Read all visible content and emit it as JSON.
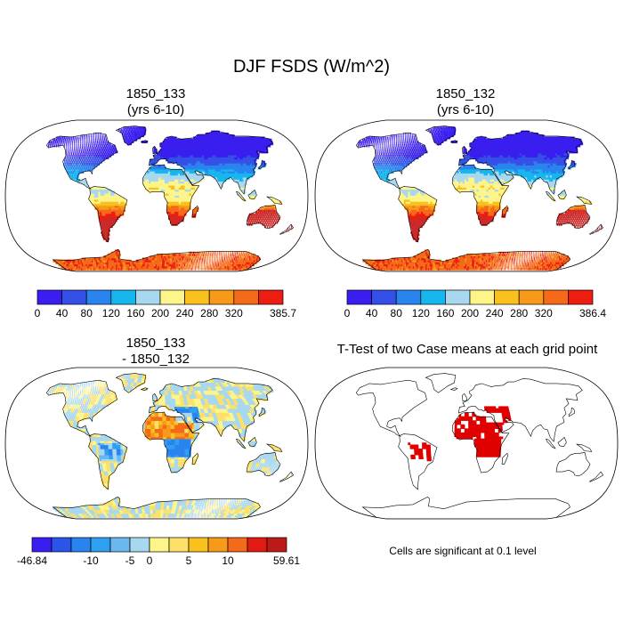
{
  "figure": {
    "title": "DJF FSDS (W/m^2)",
    "footnote": "Cells are significant at 0.1 level"
  },
  "colors": {
    "land_scale": [
      "#3a1ef0",
      "#3550e6",
      "#2a84f0",
      "#16b6ee",
      "#a8d8f0",
      "#fdf58a",
      "#f9c11e",
      "#f79a1a",
      "#f46a18",
      "#ee1d12",
      "#cc2a2a"
    ],
    "diff_scale": [
      "#3a1ef0",
      "#2a55e8",
      "#2a84f0",
      "#2fa0f0",
      "#6ab8ee",
      "#a8d8f0",
      "#fdf58a",
      "#fde06a",
      "#f9c11e",
      "#f79a1a",
      "#f46a18",
      "#e11a12",
      "#bb1a16"
    ],
    "significance": "#e00000",
    "ocean": "#ffffff",
    "coast": "#000000"
  },
  "chart_data": [
    {
      "type": "heatmap",
      "projection": "robinson",
      "title_line1": "1850_133",
      "title_line2": "(yrs 6-10)",
      "field": "FSDS",
      "units": "W/m^2",
      "colorbar_levels": [
        0,
        40,
        80,
        120,
        160,
        200,
        240,
        280,
        320
      ],
      "colorbar_max": 385.7,
      "tick_labels": [
        "0",
        "40",
        "80",
        "120",
        "160",
        "200",
        "240",
        "280",
        "320",
        "385.7"
      ]
    },
    {
      "type": "heatmap",
      "projection": "robinson",
      "title_line1": "1850_132",
      "title_line2": "(yrs 6-10)",
      "field": "FSDS",
      "units": "W/m^2",
      "colorbar_levels": [
        0,
        40,
        80,
        120,
        160,
        200,
        240,
        280,
        320
      ],
      "colorbar_max": 386.4,
      "tick_labels": [
        "0",
        "40",
        "80",
        "120",
        "160",
        "200",
        "240",
        "280",
        "320",
        "386.4"
      ]
    },
    {
      "type": "heatmap",
      "projection": "robinson",
      "title_line1": "1850_133",
      "title_line2": "- 1850_132",
      "field": "FSDS difference",
      "units": "W/m^2",
      "colorbar_min": -46.84,
      "colorbar_max": 59.61,
      "tick_labels": [
        "-46.84",
        "-10",
        "-5",
        "0",
        "5",
        "10",
        "59.61"
      ]
    },
    {
      "type": "heatmap",
      "projection": "robinson",
      "title_line1": "T-Test of two Case means at each grid point",
      "significance_level": 0.1
    }
  ]
}
